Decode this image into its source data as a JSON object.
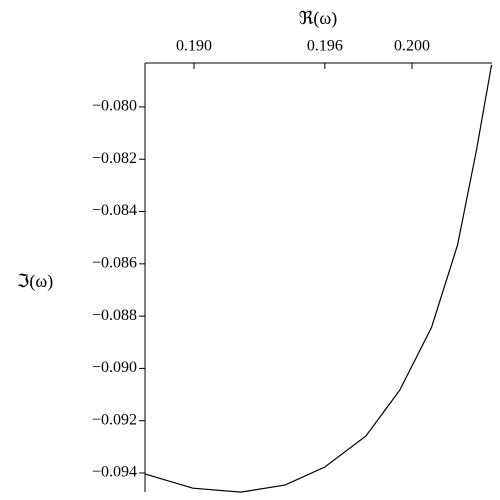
{
  "chart_data": {
    "type": "line",
    "x_label": "ℜ(ω)",
    "y_label": "ℑ(ω)",
    "x": [
      0.18776,
      0.18995,
      0.19215,
      0.19417,
      0.196,
      0.19788,
      0.19944,
      0.2009,
      0.20209,
      0.20296,
      0.20365
    ],
    "series": [
      {
        "color": "#000000",
        "values": [
          -0.09404,
          -0.09458,
          -0.09473,
          -0.09446,
          -0.09377,
          -0.09259,
          -0.09083,
          -0.08842,
          -0.08528,
          -0.08164,
          -0.07839
        ]
      }
    ],
    "xlim": [
      0.18775,
      0.20367
    ],
    "ylim": [
      -0.09465,
      -0.07832
    ],
    "xticks": [
      {
        "value": 0.19,
        "label": "0.190"
      },
      {
        "value": 0.196,
        "label": "0.196"
      },
      {
        "value": 0.2,
        "label": "0.200"
      }
    ],
    "yticks": [
      {
        "value": -0.08,
        "label": "−0.080"
      },
      {
        "value": -0.082,
        "label": "−0.082"
      },
      {
        "value": -0.084,
        "label": "−0.084"
      },
      {
        "value": -0.086,
        "label": "−0.086"
      },
      {
        "value": -0.088,
        "label": "−0.088"
      },
      {
        "value": -0.09,
        "label": "−0.090"
      },
      {
        "value": -0.092,
        "label": "−0.092"
      },
      {
        "value": -0.094,
        "label": "−0.094"
      }
    ]
  }
}
